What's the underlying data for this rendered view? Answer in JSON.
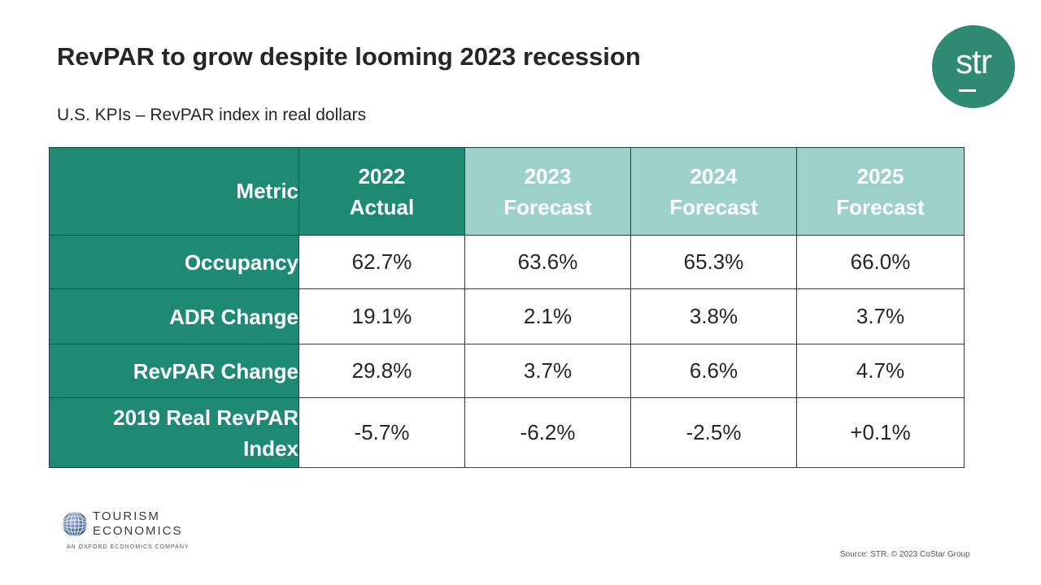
{
  "title": "RevPAR to grow despite looming 2023 recession",
  "subtitle": "U.S. KPIs – RevPAR index in real dollars",
  "logo": {
    "text": "str",
    "color": "#2e8b72"
  },
  "table": {
    "header": {
      "metric": "Metric",
      "columns": [
        {
          "year": "2022",
          "type": "Actual"
        },
        {
          "year": "2023",
          "type": "Forecast"
        },
        {
          "year": "2024",
          "type": "Forecast"
        },
        {
          "year": "2025",
          "type": "Forecast"
        }
      ]
    },
    "rows": [
      {
        "label": "Occupancy",
        "values": [
          "62.7%",
          "63.6%",
          "65.3%",
          "66.0%"
        ]
      },
      {
        "label": "ADR Change",
        "values": [
          "19.1%",
          "2.1%",
          "3.8%",
          "3.7%"
        ]
      },
      {
        "label": "RevPAR Change",
        "values": [
          "29.8%",
          "3.7%",
          "6.6%",
          "4.7%"
        ]
      },
      {
        "label_line1": "2019 Real RevPAR",
        "label_line2": "Index",
        "values": [
          "-5.7%",
          "-6.2%",
          "-2.5%",
          "+0.1%"
        ]
      }
    ],
    "colors": {
      "dark": "#1f8a74",
      "light": "#9bd1c6"
    }
  },
  "tourism_economics": {
    "line1": "TOURISM",
    "line2": "ECONOMICS",
    "tagline": "AN OXFORD ECONOMICS COMPANY"
  },
  "source": "Source: STR. © 2023 CoStar Group"
}
